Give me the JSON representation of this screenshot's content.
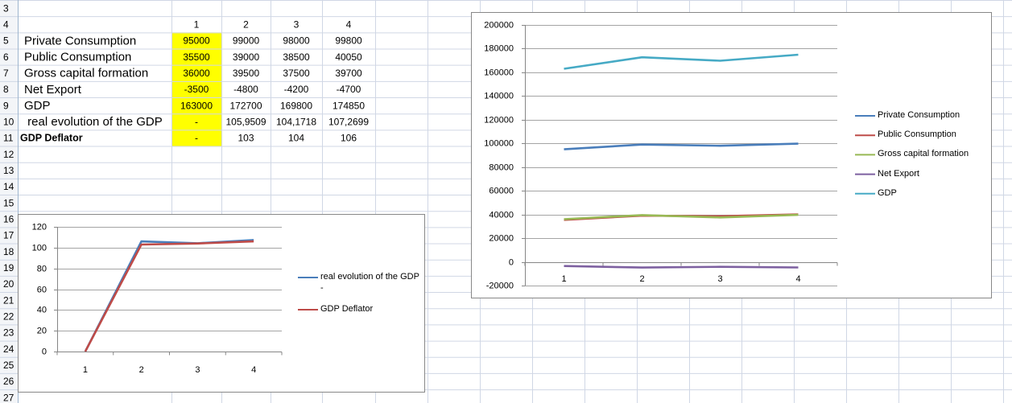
{
  "sheet": {
    "row_numbers": [
      3,
      4,
      5,
      6,
      7,
      8,
      9,
      10,
      11,
      12,
      13,
      14,
      15,
      16,
      17,
      18,
      19,
      20,
      21,
      22,
      23,
      24,
      25,
      26,
      27
    ],
    "column_headers": [
      "1",
      "2",
      "3",
      "4"
    ],
    "rows": [
      {
        "label": "Private Consumption",
        "cells": [
          "95000",
          "99000",
          "98000",
          "99800"
        ]
      },
      {
        "label": "Public Consumption",
        "cells": [
          "35500",
          "39000",
          "38500",
          "40050"
        ]
      },
      {
        "label": "Gross capital formation",
        "cells": [
          "36000",
          "39500",
          "37500",
          "39700"
        ]
      },
      {
        "label": "Net Export",
        "cells": [
          "-3500",
          "-4800",
          "-4200",
          "-4700"
        ]
      },
      {
        "label": "GDP",
        "cells": [
          "163000",
          "172700",
          "169800",
          "174850"
        ]
      },
      {
        "label": " real evolution of the GDP",
        "cells": [
          "-",
          "105,9509",
          "104,1718",
          "107,2699"
        ]
      },
      {
        "label": "GDP Deflator",
        "cells": [
          "-",
          "103",
          "104",
          "106"
        ]
      }
    ]
  },
  "chart_data": [
    {
      "type": "line",
      "categories": [
        "1",
        "2",
        "3",
        "4"
      ],
      "series": [
        {
          "name": "Private Consumption",
          "color": "#4a7ebb",
          "values": [
            95000,
            99000,
            98000,
            99800
          ]
        },
        {
          "name": "Public Consumption",
          "color": "#be4b48",
          "values": [
            35500,
            39000,
            38500,
            40050
          ]
        },
        {
          "name": "Gross capital formation",
          "color": "#98b954",
          "values": [
            36000,
            39500,
            37500,
            39700
          ]
        },
        {
          "name": "Net Export",
          "color": "#7d60a0",
          "values": [
            -3500,
            -4800,
            -4200,
            -4700
          ]
        },
        {
          "name": "GDP",
          "color": "#46aac5",
          "values": [
            163000,
            172700,
            169800,
            174850
          ]
        }
      ],
      "ylim": [
        -20000,
        200000
      ],
      "yticks": [
        -20000,
        0,
        20000,
        40000,
        60000,
        80000,
        100000,
        120000,
        140000,
        160000,
        180000,
        200000
      ],
      "grid": true,
      "legend": "right"
    },
    {
      "type": "line",
      "categories": [
        "1",
        "2",
        "3",
        "4"
      ],
      "series": [
        {
          "name": "real evolution of the GDP -",
          "color": "#4a7ebb",
          "values": [
            0,
            105.9509,
            104.1718,
            107.2699
          ]
        },
        {
          "name": "GDP Deflator",
          "color": "#be4b48",
          "values": [
            0,
            103,
            104,
            106
          ]
        }
      ],
      "ylim": [
        0,
        120
      ],
      "yticks": [
        0,
        20,
        40,
        60,
        80,
        100,
        120
      ],
      "grid": true,
      "legend": "right"
    }
  ]
}
